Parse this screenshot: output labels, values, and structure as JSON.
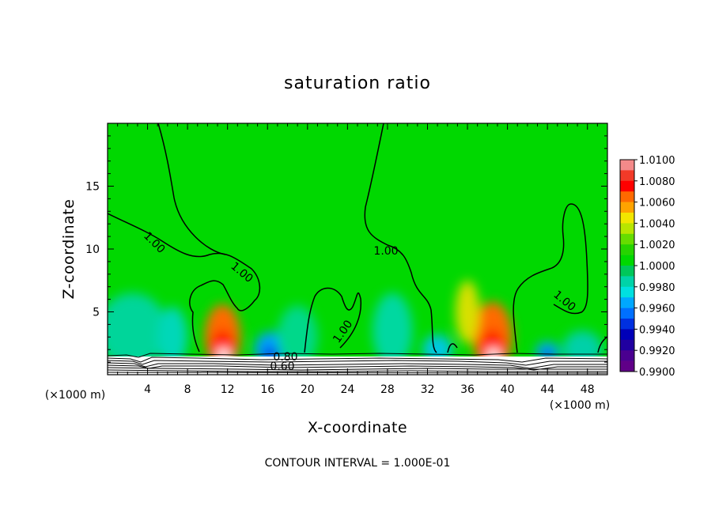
{
  "chart_data": {
    "type": "heatmap",
    "title": "saturation ratio",
    "xlabel": "X-coordinate",
    "ylabel": "Z-coordinate",
    "x_unit": "(×1000 m)",
    "z_unit": "(×1000 m)",
    "xlim": [
      0,
      50
    ],
    "ylim": [
      0,
      20
    ],
    "x_ticks": [
      4,
      8,
      12,
      16,
      20,
      24,
      28,
      32,
      36,
      40,
      44,
      48
    ],
    "y_ticks": [
      5,
      10,
      15
    ],
    "footer": "CONTOUR INTERVAL = 1.000E-01",
    "contour_labels": [
      "1.00",
      "1.00",
      "1.00",
      "1.00",
      "1.00",
      "0.80",
      "0.60"
    ],
    "colorbar": {
      "labels": [
        "1.0100",
        "1.0080",
        "1.0060",
        "1.0040",
        "1.0020",
        "1.0000",
        "0.9980",
        "0.9960",
        "0.9940",
        "0.9920",
        "0.9900"
      ],
      "colors": [
        "#f48a8a",
        "#f23a28",
        "#ff0000",
        "#ff6a00",
        "#ffa300",
        "#f2e600",
        "#b8e600",
        "#66dd00",
        "#26d400",
        "#00d800",
        "#00c75a",
        "#00d3a8",
        "#00e0e0",
        "#00a8ff",
        "#0070ff",
        "#0030e0",
        "#0000b8",
        "#2000a0",
        "#4a0090",
        "#600088"
      ]
    },
    "background_color": "#00d800",
    "blobs": [
      {
        "x": 11.5,
        "z": 3.0,
        "rx": 1.8,
        "rz": 2.6,
        "color": "#ff6a00"
      },
      {
        "x": 11.5,
        "z": 2.0,
        "rx": 1.2,
        "rz": 1.6,
        "color": "#ff1a00"
      },
      {
        "x": 11.6,
        "z": 1.5,
        "rx": 0.6,
        "rz": 0.6,
        "color": "#ffffff"
      },
      {
        "x": 38.5,
        "z": 3.0,
        "rx": 2.0,
        "rz": 2.8,
        "color": "#ff6a00"
      },
      {
        "x": 38.5,
        "z": 2.0,
        "rx": 1.2,
        "rz": 1.6,
        "color": "#ff1a00"
      },
      {
        "x": 38.6,
        "z": 1.5,
        "rx": 0.6,
        "rz": 0.6,
        "color": "#ffffff"
      },
      {
        "x": 36.0,
        "z": 5.0,
        "rx": 1.2,
        "rz": 2.5,
        "color": "#d8e000"
      },
      {
        "x": 16.3,
        "z": 2.0,
        "rx": 1.6,
        "rz": 1.4,
        "color": "#00a0ff"
      },
      {
        "x": 16.3,
        "z": 1.6,
        "rx": 0.8,
        "rz": 0.6,
        "color": "#0040e0"
      },
      {
        "x": 44.0,
        "z": 1.8,
        "rx": 1.2,
        "rz": 0.8,
        "color": "#00a8ff"
      },
      {
        "x": 44.0,
        "z": 1.5,
        "rx": 0.5,
        "rz": 0.4,
        "color": "#0000c0"
      },
      {
        "x": 2.5,
        "z": 3.5,
        "rx": 3.5,
        "rz": 3.0,
        "color": "#00d59a"
      },
      {
        "x": 6.5,
        "z": 3.0,
        "rx": 1.5,
        "rz": 2.4,
        "color": "#00d7b8"
      },
      {
        "x": 19.0,
        "z": 3.0,
        "rx": 2.0,
        "rz": 2.5,
        "color": "#00d88a"
      },
      {
        "x": 28.5,
        "z": 3.5,
        "rx": 2.0,
        "rz": 3.0,
        "color": "#00d8a0"
      },
      {
        "x": 33.0,
        "z": 2.0,
        "rx": 1.5,
        "rz": 1.2,
        "color": "#00c8e0"
      },
      {
        "x": 47.5,
        "z": 2.0,
        "rx": 2.0,
        "rz": 1.5,
        "color": "#00d0a8"
      }
    ]
  }
}
